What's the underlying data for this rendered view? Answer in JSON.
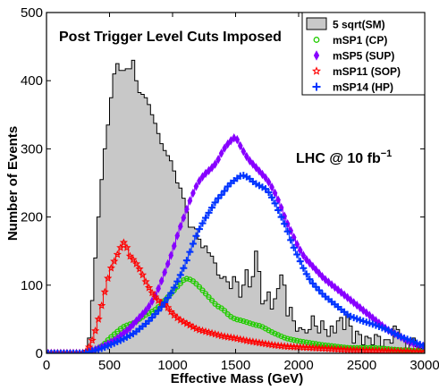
{
  "chart_data": {
    "type": "histogram",
    "annotation": "Post Trigger Level Cuts Imposed",
    "lumi_text": "LHC @ 10 fb",
    "lumi_superscript": "−1",
    "xlabel": "Effective Mass (GeV)",
    "ylabel": "Number of Events",
    "xlim": [
      0,
      3000
    ],
    "ylim": [
      0,
      500
    ],
    "x_ticks": [
      "0",
      "500",
      "1000",
      "1500",
      "2000",
      "2500",
      "3000"
    ],
    "y_ticks": [
      "0",
      "100",
      "200",
      "300",
      "400",
      "500"
    ],
    "grid": false,
    "legend_position": "top-right",
    "bin_width": 25,
    "series": [
      {
        "name": "5 sqrt(SM)",
        "style": "filled-step",
        "color": "#c8c8c8",
        "edge_color": "#000000",
        "anchors": [
          [
            0,
            0
          ],
          [
            325,
            0
          ],
          [
            350,
            45
          ],
          [
            375,
            110
          ],
          [
            400,
            170
          ],
          [
            425,
            230
          ],
          [
            450,
            280
          ],
          [
            475,
            320
          ],
          [
            500,
            350
          ],
          [
            525,
            400
          ],
          [
            550,
            420
          ],
          [
            575,
            430
          ],
          [
            600,
            400
          ],
          [
            625,
            430
          ],
          [
            650,
            405
          ],
          [
            675,
            430
          ],
          [
            700,
            430
          ],
          [
            725,
            370
          ],
          [
            750,
            395
          ],
          [
            775,
            365
          ],
          [
            800,
            385
          ],
          [
            825,
            345
          ],
          [
            850,
            355
          ],
          [
            875,
            320
          ],
          [
            900,
            325
          ],
          [
            925,
            290
          ],
          [
            950,
            305
          ],
          [
            975,
            275
          ],
          [
            1000,
            290
          ],
          [
            1025,
            245
          ],
          [
            1050,
            255
          ],
          [
            1075,
            230
          ],
          [
            1100,
            225
          ],
          [
            1125,
            190
          ],
          [
            1150,
            180
          ],
          [
            1175,
            190
          ],
          [
            1200,
            175
          ],
          [
            1225,
            160
          ],
          [
            1250,
            150
          ],
          [
            1275,
            165
          ],
          [
            1300,
            130
          ],
          [
            1325,
            155
          ],
          [
            1350,
            110
          ],
          [
            1375,
            120
          ],
          [
            1400,
            100
          ],
          [
            1425,
            125
          ],
          [
            1450,
            85
          ],
          [
            1475,
            105
          ],
          [
            1500,
            120
          ],
          [
            1525,
            90
          ],
          [
            1550,
            75
          ],
          [
            1575,
            125
          ],
          [
            1600,
            120
          ],
          [
            1625,
            75
          ],
          [
            1650,
            150
          ],
          [
            1675,
            150
          ],
          [
            1700,
            90
          ],
          [
            1725,
            55
          ],
          [
            1750,
            100
          ],
          [
            1775,
            80
          ],
          [
            1800,
            50
          ],
          [
            1825,
            110
          ],
          [
            1850,
            80
          ],
          [
            1875,
            150
          ],
          [
            1900,
            50
          ],
          [
            1925,
            60
          ],
          [
            1950,
            75
          ],
          [
            1975,
            20
          ],
          [
            2000,
            45
          ],
          [
            2025,
            30
          ],
          [
            2050,
            40
          ],
          [
            2075,
            20
          ],
          [
            2100,
            50
          ],
          [
            2125,
            60
          ],
          [
            2150,
            20
          ],
          [
            2175,
            40
          ],
          [
            2200,
            55
          ],
          [
            2225,
            15
          ],
          [
            2250,
            35
          ],
          [
            2275,
            45
          ],
          [
            2300,
            15
          ],
          [
            2325,
            80
          ],
          [
            2350,
            25
          ],
          [
            2375,
            45
          ],
          [
            2400,
            70
          ],
          [
            2425,
            10
          ],
          [
            2450,
            20
          ],
          [
            2475,
            45
          ],
          [
            2500,
            10
          ],
          [
            2525,
            15
          ],
          [
            2550,
            35
          ],
          [
            2575,
            10
          ],
          [
            2600,
            15
          ],
          [
            2625,
            40
          ],
          [
            2650,
            10
          ],
          [
            2675,
            10
          ],
          [
            2700,
            30
          ],
          [
            2725,
            10
          ],
          [
            2750,
            20
          ],
          [
            2775,
            60
          ],
          [
            2800,
            10
          ],
          [
            2825,
            35
          ],
          [
            2850,
            10
          ],
          [
            2875,
            5
          ],
          [
            2900,
            35
          ],
          [
            2925,
            10
          ],
          [
            2950,
            10
          ],
          [
            2975,
            5
          ]
        ]
      },
      {
        "name": "mSP1 (CP)",
        "style": "step-markers",
        "marker": "circle",
        "color": "#22cc00",
        "anchors": [
          [
            0,
            0
          ],
          [
            300,
            0
          ],
          [
            350,
            3
          ],
          [
            400,
            6
          ],
          [
            450,
            12
          ],
          [
            500,
            22
          ],
          [
            550,
            30
          ],
          [
            600,
            38
          ],
          [
            650,
            42
          ],
          [
            700,
            45
          ],
          [
            750,
            52
          ],
          [
            800,
            58
          ],
          [
            850,
            62
          ],
          [
            900,
            70
          ],
          [
            950,
            80
          ],
          [
            1000,
            90
          ],
          [
            1050,
            100
          ],
          [
            1100,
            110
          ],
          [
            1150,
            108
          ],
          [
            1200,
            100
          ],
          [
            1250,
            90
          ],
          [
            1300,
            80
          ],
          [
            1350,
            70
          ],
          [
            1400,
            65
          ],
          [
            1450,
            55
          ],
          [
            1500,
            50
          ],
          [
            1550,
            48
          ],
          [
            1600,
            45
          ],
          [
            1650,
            42
          ],
          [
            1700,
            40
          ],
          [
            1750,
            35
          ],
          [
            1800,
            30
          ],
          [
            1900,
            22
          ],
          [
            2000,
            18
          ],
          [
            2200,
            12
          ],
          [
            2400,
            8
          ],
          [
            2600,
            8
          ],
          [
            2800,
            5
          ],
          [
            3000,
            3
          ]
        ]
      },
      {
        "name": "mSP5 (SUP)",
        "style": "step-markers",
        "marker": "diamond",
        "color": "#8800ff",
        "anchors": [
          [
            0,
            0
          ],
          [
            300,
            0
          ],
          [
            350,
            3
          ],
          [
            400,
            6
          ],
          [
            450,
            10
          ],
          [
            500,
            15
          ],
          [
            550,
            20
          ],
          [
            600,
            28
          ],
          [
            650,
            35
          ],
          [
            700,
            45
          ],
          [
            750,
            55
          ],
          [
            800,
            65
          ],
          [
            850,
            80
          ],
          [
            900,
            100
          ],
          [
            950,
            125
          ],
          [
            1000,
            150
          ],
          [
            1050,
            180
          ],
          [
            1100,
            205
          ],
          [
            1150,
            230
          ],
          [
            1200,
            250
          ],
          [
            1250,
            262
          ],
          [
            1300,
            270
          ],
          [
            1350,
            280
          ],
          [
            1400,
            298
          ],
          [
            1450,
            310
          ],
          [
            1500,
            318
          ],
          [
            1550,
            300
          ],
          [
            1600,
            285
          ],
          [
            1650,
            275
          ],
          [
            1700,
            265
          ],
          [
            1750,
            255
          ],
          [
            1800,
            240
          ],
          [
            1850,
            220
          ],
          [
            1900,
            195
          ],
          [
            1950,
            175
          ],
          [
            2000,
            155
          ],
          [
            2050,
            140
          ],
          [
            2100,
            130
          ],
          [
            2150,
            120
          ],
          [
            2200,
            110
          ],
          [
            2300,
            95
          ],
          [
            2400,
            80
          ],
          [
            2500,
            65
          ],
          [
            2600,
            50
          ],
          [
            2700,
            35
          ],
          [
            2800,
            25
          ],
          [
            2900,
            15
          ],
          [
            3000,
            10
          ]
        ]
      },
      {
        "name": "mSP11 (SOP)",
        "style": "step-markers",
        "marker": "star",
        "color": "#ff0000",
        "anchors": [
          [
            0,
            0
          ],
          [
            300,
            0
          ],
          [
            350,
            12
          ],
          [
            400,
            40
          ],
          [
            450,
            80
          ],
          [
            500,
            120
          ],
          [
            550,
            140
          ],
          [
            600,
            160
          ],
          [
            625,
            165
          ],
          [
            650,
            145
          ],
          [
            700,
            135
          ],
          [
            750,
            120
          ],
          [
            800,
            100
          ],
          [
            850,
            85
          ],
          [
            900,
            75
          ],
          [
            950,
            70
          ],
          [
            1000,
            58
          ],
          [
            1050,
            50
          ],
          [
            1100,
            45
          ],
          [
            1150,
            40
          ],
          [
            1200,
            35
          ],
          [
            1300,
            30
          ],
          [
            1400,
            25
          ],
          [
            1500,
            22
          ],
          [
            1600,
            18
          ],
          [
            1700,
            15
          ],
          [
            1800,
            12
          ],
          [
            1900,
            10
          ],
          [
            2000,
            9
          ],
          [
            2200,
            7
          ],
          [
            2400,
            5
          ],
          [
            2600,
            4
          ],
          [
            2800,
            3
          ],
          [
            3000,
            2
          ]
        ]
      },
      {
        "name": "mSP14 (HP)",
        "style": "step-markers",
        "marker": "plus",
        "color": "#0033ff",
        "anchors": [
          [
            0,
            0
          ],
          [
            300,
            0
          ],
          [
            350,
            3
          ],
          [
            400,
            5
          ],
          [
            450,
            8
          ],
          [
            500,
            12
          ],
          [
            550,
            16
          ],
          [
            600,
            20
          ],
          [
            650,
            25
          ],
          [
            700,
            30
          ],
          [
            750,
            38
          ],
          [
            800,
            45
          ],
          [
            850,
            55
          ],
          [
            900,
            65
          ],
          [
            950,
            78
          ],
          [
            1000,
            92
          ],
          [
            1050,
            110
          ],
          [
            1100,
            130
          ],
          [
            1150,
            155
          ],
          [
            1200,
            178
          ],
          [
            1250,
            195
          ],
          [
            1300,
            210
          ],
          [
            1350,
            225
          ],
          [
            1400,
            235
          ],
          [
            1450,
            248
          ],
          [
            1500,
            255
          ],
          [
            1550,
            262
          ],
          [
            1600,
            258
          ],
          [
            1650,
            250
          ],
          [
            1700,
            245
          ],
          [
            1750,
            240
          ],
          [
            1800,
            225
          ],
          [
            1850,
            205
          ],
          [
            1900,
            185
          ],
          [
            1950,
            160
          ],
          [
            2000,
            140
          ],
          [
            2050,
            120
          ],
          [
            2100,
            105
          ],
          [
            2150,
            95
          ],
          [
            2200,
            85
          ],
          [
            2300,
            70
          ],
          [
            2400,
            55
          ],
          [
            2500,
            48
          ],
          [
            2600,
            42
          ],
          [
            2700,
            35
          ],
          [
            2800,
            25
          ],
          [
            2900,
            18
          ],
          [
            3000,
            10
          ]
        ]
      }
    ]
  }
}
